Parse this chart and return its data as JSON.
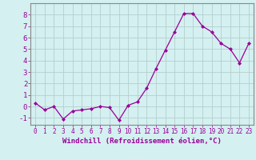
{
  "x": [
    0,
    1,
    2,
    3,
    4,
    5,
    6,
    7,
    8,
    9,
    10,
    11,
    12,
    13,
    14,
    15,
    16,
    17,
    18,
    19,
    20,
    21,
    22,
    23
  ],
  "y": [
    0.3,
    -0.3,
    0.0,
    -1.1,
    -0.4,
    -0.3,
    -0.2,
    0.0,
    -0.1,
    -1.2,
    0.1,
    0.4,
    1.6,
    3.3,
    4.9,
    6.5,
    8.1,
    8.1,
    7.0,
    6.5,
    5.5,
    5.0,
    3.8,
    5.5
  ],
  "xlabel": "Windchill (Refroidissement éolien,°C)",
  "xlim": [
    -0.5,
    23.5
  ],
  "ylim": [
    -1.6,
    9.0
  ],
  "yticks": [
    -1,
    0,
    1,
    2,
    3,
    4,
    5,
    6,
    7,
    8
  ],
  "xticks": [
    0,
    1,
    2,
    3,
    4,
    5,
    6,
    7,
    8,
    9,
    10,
    11,
    12,
    13,
    14,
    15,
    16,
    17,
    18,
    19,
    20,
    21,
    22,
    23
  ],
  "line_color": "#990099",
  "marker": "D",
  "marker_size": 2.0,
  "bg_color": "#d4f0f0",
  "grid_color": "#b0c8c8",
  "tick_color": "#990099",
  "label_color": "#990099",
  "font_size_xlabel": 6.5,
  "font_size_ytick": 6.5,
  "font_size_xtick": 5.5
}
